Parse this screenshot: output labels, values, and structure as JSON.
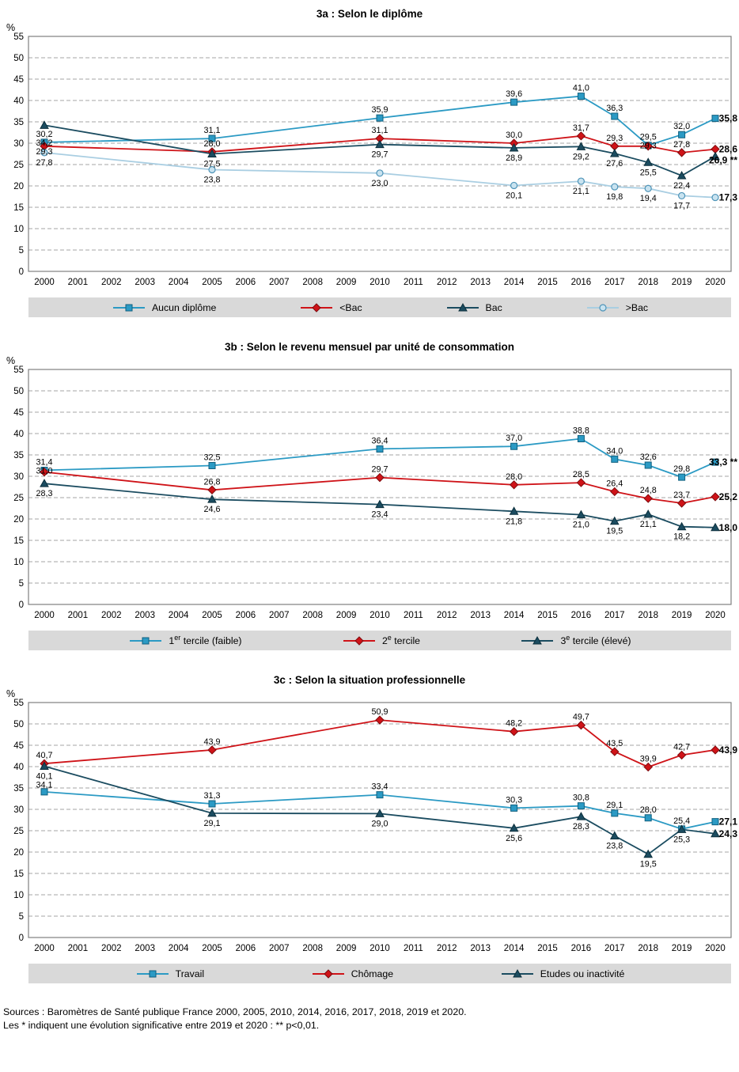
{
  "footer": {
    "line1": "Sources : Baromètres de Santé publique France 2000, 2005, 2010, 2014, 2016, 2017, 2018, 2019 et 2020.",
    "line2": "Les * indiquent une évolution significative entre 2019 et 2020 : ** p<0,01."
  },
  "chart_data": [
    {
      "type": "line",
      "title": "3a : Selon le diplôme",
      "ylabel": "%",
      "ylim": [
        0,
        55
      ],
      "ytick_step": 5,
      "grid": "horizontal-dashed",
      "legend_position": "bottom",
      "x_ticks": [
        2000,
        2001,
        2002,
        2003,
        2004,
        2005,
        2006,
        2007,
        2008,
        2009,
        2010,
        2011,
        2012,
        2013,
        2014,
        2015,
        2016,
        2017,
        2018,
        2019,
        2020
      ],
      "x": [
        2000,
        2005,
        2010,
        2014,
        2016,
        2017,
        2018,
        2019,
        2020
      ],
      "series": [
        {
          "name": "Aucun diplôme",
          "marker": "square",
          "color": "#2B9AC4",
          "marker_fill": "#2B9AC4",
          "marker_stroke": "#11607F",
          "label_side": "above",
          "values": [
            30.2,
            31.1,
            35.9,
            39.6,
            41.0,
            36.3,
            29.5,
            32.0,
            35.8
          ],
          "point_labels": [
            "30,2",
            "31,1",
            "35,9",
            "39,6",
            "41,0",
            "36,3",
            "29,5",
            "32,0",
            "35,8"
          ]
        },
        {
          "name": "<Bac",
          "marker": "diamond",
          "color": "#CF1318",
          "marker_fill": "#CF1318",
          "marker_stroke": "#7E0B0E",
          "label_side": "above",
          "values": [
            29.3,
            28.0,
            31.1,
            30.0,
            31.7,
            29.3,
            29.3,
            27.8,
            28.6
          ],
          "point_labels": [
            "29,3",
            "28,0",
            "31,1",
            "30,0",
            "31,7",
            "29,3",
            "29,3",
            "27,8",
            "28,6"
          ]
        },
        {
          "name": "Bac",
          "marker": "triangle",
          "color": "#1B4C60",
          "marker_fill": "#1B4C60",
          "marker_stroke": "#0C2F3C",
          "label_side": "below",
          "values": [
            34.2,
            27.5,
            29.7,
            28.9,
            29.2,
            27.6,
            25.5,
            22.4,
            26.9
          ],
          "point_labels": [
            "34,2",
            "27,5",
            "29,7",
            "28,9",
            "29,2",
            "27,6",
            "25,5",
            "22,4",
            "26,9 **"
          ]
        },
        {
          "name": ">Bac",
          "marker": "circle",
          "color": "#A9CEE2",
          "marker_fill": "#C9E3F0",
          "marker_stroke": "#4E94B8",
          "label_side": "below",
          "values": [
            27.8,
            23.8,
            23.0,
            20.1,
            21.1,
            19.8,
            19.4,
            17.7,
            17.3
          ],
          "point_labels": [
            "27,8",
            "23,8",
            "23,0",
            "20,1",
            "21,1",
            "19,8",
            "19,4",
            "17,7",
            "17,3"
          ]
        }
      ]
    },
    {
      "type": "line",
      "title": "3b : Selon le revenu mensuel par unité de consommation",
      "ylabel": "%",
      "ylim": [
        0,
        55
      ],
      "ytick_step": 5,
      "grid": "horizontal-dashed",
      "legend_position": "bottom",
      "x_ticks": [
        2000,
        2001,
        2002,
        2003,
        2004,
        2005,
        2006,
        2007,
        2008,
        2009,
        2010,
        2011,
        2012,
        2013,
        2014,
        2015,
        2016,
        2017,
        2018,
        2019,
        2020
      ],
      "x": [
        2000,
        2005,
        2010,
        2014,
        2016,
        2017,
        2018,
        2019,
        2020
      ],
      "series": [
        {
          "name": "1er tercile (faible)",
          "legend_segments": [
            {
              "t": "1"
            },
            {
              "t": "er",
              "sup": true
            },
            {
              "t": " tercile (faible)"
            }
          ],
          "marker": "square",
          "color": "#2B9AC4",
          "marker_fill": "#2B9AC4",
          "marker_stroke": "#11607F",
          "label_side": "above",
          "values": [
            31.4,
            32.5,
            36.4,
            37.0,
            38.8,
            34.0,
            32.6,
            29.8,
            33.3
          ],
          "point_labels": [
            "31,4",
            "32,5",
            "36,4",
            "37,0",
            "38,8",
            "34,0",
            "32,6",
            "29,8",
            "33,3 **"
          ]
        },
        {
          "name": "2e tercile",
          "legend_segments": [
            {
              "t": "2"
            },
            {
              "t": "e",
              "sup": true
            },
            {
              "t": " tercile"
            }
          ],
          "marker": "diamond",
          "color": "#CF1318",
          "marker_fill": "#CF1318",
          "marker_stroke": "#7E0B0E",
          "label_side": "above",
          "values": [
            31.0,
            26.8,
            29.7,
            28.0,
            28.5,
            26.4,
            24.8,
            23.7,
            25.2
          ],
          "point_labels": [
            "31,0",
            "26,8",
            "29,7",
            "28,0",
            "28,5",
            "26,4",
            "24,8",
            "23,7",
            "25,2"
          ]
        },
        {
          "name": "3e tercile (élevé)",
          "legend_segments": [
            {
              "t": "3"
            },
            {
              "t": "e",
              "sup": true
            },
            {
              "t": " tercile (élevé)"
            }
          ],
          "marker": "triangle",
          "color": "#1B4C60",
          "marker_fill": "#1B4C60",
          "marker_stroke": "#0C2F3C",
          "label_side": "below",
          "values": [
            28.3,
            24.6,
            23.4,
            21.8,
            21.0,
            19.5,
            21.1,
            18.2,
            18.0
          ],
          "point_labels": [
            "28,3",
            "24,6",
            "23,4",
            "21,8",
            "21,0",
            "19,5",
            "21,1",
            "18,2",
            "18,0"
          ]
        }
      ]
    },
    {
      "type": "line",
      "title": "3c : Selon la situation professionnelle",
      "ylabel": "%",
      "ylim": [
        0,
        55
      ],
      "ytick_step": 5,
      "grid": "horizontal-dashed",
      "legend_position": "bottom",
      "x_ticks": [
        2000,
        2001,
        2002,
        2003,
        2004,
        2005,
        2006,
        2007,
        2008,
        2009,
        2010,
        2011,
        2012,
        2013,
        2014,
        2015,
        2016,
        2017,
        2018,
        2019,
        2020
      ],
      "x": [
        2000,
        2005,
        2010,
        2014,
        2016,
        2017,
        2018,
        2019,
        2020
      ],
      "series": [
        {
          "name": "Travail",
          "marker": "square",
          "color": "#2B9AC4",
          "marker_fill": "#2B9AC4",
          "marker_stroke": "#11607F",
          "label_side": "above",
          "values": [
            34.1,
            31.3,
            33.4,
            30.3,
            30.8,
            29.1,
            28.0,
            25.4,
            27.1
          ],
          "point_labels": [
            "34,1",
            "31,3",
            "33,4",
            "30,3",
            "30,8",
            "29,1",
            "28,0",
            "25,4",
            "27,1"
          ]
        },
        {
          "name": "Chômage",
          "marker": "diamond",
          "color": "#CF1318",
          "marker_fill": "#CF1318",
          "marker_stroke": "#7E0B0E",
          "label_side": "above",
          "values": [
            40.7,
            43.9,
            50.9,
            48.2,
            49.7,
            43.5,
            39.9,
            42.7,
            43.9
          ],
          "point_labels": [
            "40,7",
            "43,9",
            "50,9",
            "48,2",
            "49,7",
            "43,5",
            "39,9",
            "42,7",
            "43,9"
          ]
        },
        {
          "name": "Etudes ou inactivité",
          "marker": "triangle",
          "color": "#1B4C60",
          "marker_fill": "#1B4C60",
          "marker_stroke": "#0C2F3C",
          "label_side": "below",
          "values": [
            40.1,
            29.1,
            29.0,
            25.6,
            28.3,
            23.8,
            19.5,
            25.3,
            24.3
          ],
          "point_labels": [
            "40,1",
            "29,1",
            "29,0",
            "25,6",
            "28,3",
            "23,8",
            "19,5",
            "25,3",
            "24,3"
          ]
        }
      ]
    }
  ]
}
